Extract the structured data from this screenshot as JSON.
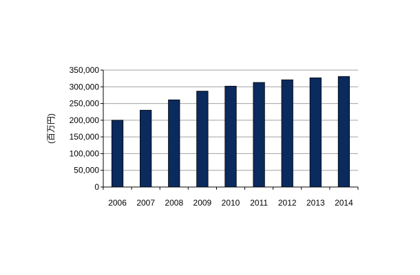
{
  "chart_data": {
    "type": "bar",
    "categories": [
      "2006",
      "2007",
      "2008",
      "2009",
      "2010",
      "2011",
      "2012",
      "2013",
      "2014"
    ],
    "values": [
      200000,
      230000,
      261000,
      287000,
      302000,
      313000,
      321000,
      327000,
      331000
    ],
    "ylabel": "(百万円)",
    "xlabel": "",
    "ylim": [
      0,
      350000
    ],
    "yticks": [
      "0",
      "50,000",
      "100,000",
      "150,000",
      "200,000",
      "250,000",
      "300,000",
      "350,000"
    ],
    "grid": true,
    "colors": {
      "bar": "#0b2a5e",
      "grid": "#a0a0a0",
      "axis": "#000000"
    }
  }
}
